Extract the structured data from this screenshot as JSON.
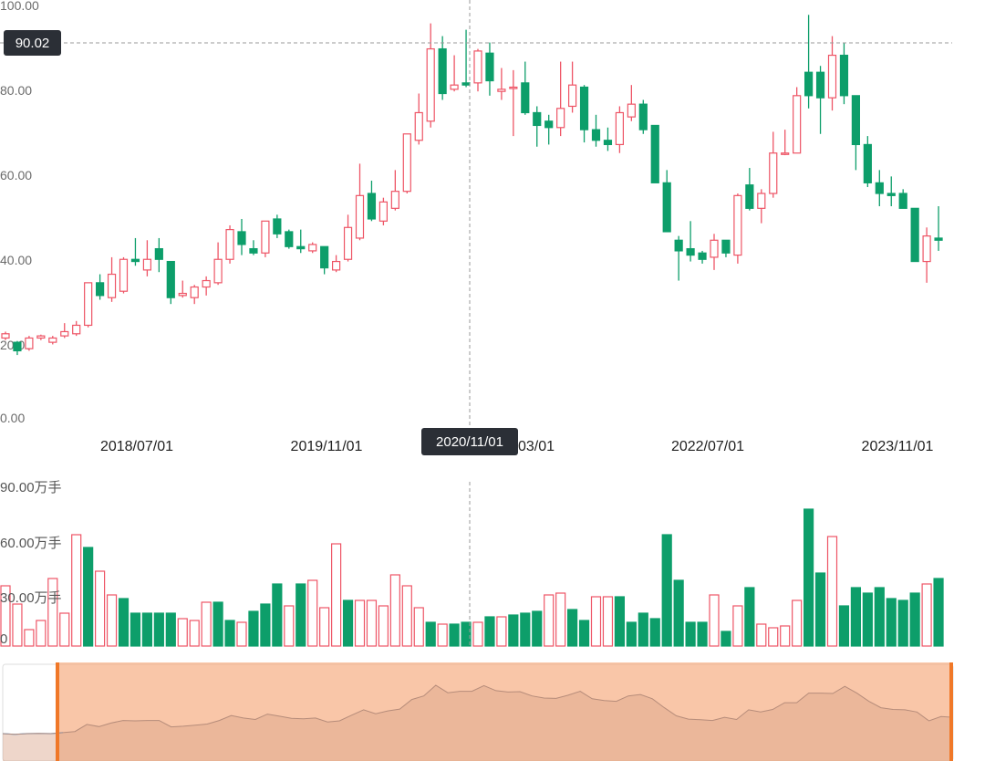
{
  "colors": {
    "up": "#ee5566",
    "down": "#0d9e6a",
    "crosshair": "#999999",
    "tag_bg": "#2b2f36",
    "brush": "#f6a77a",
    "brush_handle": "#f07828",
    "overview_line": "#5aa7ea"
  },
  "crosshair": {
    "price_label": "90.02",
    "date_label": "2020/11/01",
    "price": 90.02,
    "candle_index": 39
  },
  "chart_data": [
    {
      "type": "candlestick",
      "title": "",
      "y_ticks": [
        "100.00",
        "80.00",
        "60.00",
        "40.00",
        "20.00",
        "0.00"
      ],
      "ylim": [
        0,
        100
      ],
      "x_ticks": [
        {
          "label": "2018/07/01",
          "index": 8
        },
        {
          "label": "2019/11/01",
          "index": 24
        },
        {
          "label": "2021/03/01",
          "label_visible_part": "03/01",
          "index": 40
        },
        {
          "label": "2022/07/01",
          "index": 56
        },
        {
          "label": "2023/11/01",
          "index": 72
        }
      ],
      "grid": false,
      "candles": [
        [
          17.5,
          18.5,
          19.0,
          17.0
        ],
        [
          16.5,
          14.5,
          16.8,
          13.5
        ],
        [
          15.0,
          17.5,
          18.0,
          14.5
        ],
        [
          17.5,
          18.0,
          18.3,
          17.0
        ],
        [
          16.5,
          17.5,
          18.0,
          16.0
        ],
        [
          18.0,
          19.0,
          21.0,
          17.5
        ],
        [
          18.5,
          20.5,
          21.5,
          18.0
        ],
        [
          20.5,
          30.5,
          30.5,
          20.0
        ],
        [
          30.5,
          27.5,
          32.5,
          26.5
        ],
        [
          27.0,
          32.5,
          36.5,
          26.0
        ],
        [
          28.5,
          36.0,
          36.5,
          28.0
        ],
        [
          36.0,
          35.5,
          41.0,
          34.5
        ],
        [
          33.5,
          36.0,
          40.5,
          32.0
        ],
        [
          38.5,
          36.0,
          41.0,
          33.0
        ],
        [
          35.5,
          27.0,
          35.5,
          25.5
        ],
        [
          27.5,
          28.0,
          31.0,
          27.0
        ],
        [
          27.0,
          29.5,
          30.0,
          25.5
        ],
        [
          29.5,
          31.0,
          32.0,
          27.5
        ],
        [
          30.5,
          36.0,
          40.0,
          30.0
        ],
        [
          36.0,
          43.0,
          44.0,
          35.0
        ],
        [
          42.5,
          39.5,
          45.5,
          37.0
        ],
        [
          38.5,
          37.5,
          40.5,
          37.0
        ],
        [
          37.5,
          45.0,
          45.0,
          36.5
        ],
        [
          45.5,
          42.0,
          46.5,
          41.0
        ],
        [
          42.5,
          39.0,
          43.0,
          38.5
        ],
        [
          39.0,
          38.5,
          43.0,
          37.5
        ],
        [
          38.0,
          39.5,
          40.0,
          37.5
        ],
        [
          39.0,
          34.0,
          39.0,
          32.5
        ],
        [
          33.5,
          35.5,
          37.0,
          33.0
        ],
        [
          36.0,
          43.5,
          46.5,
          35.5
        ],
        [
          41.0,
          51.0,
          58.5,
          40.5
        ],
        [
          51.5,
          45.5,
          54.5,
          45.0
        ],
        [
          45.0,
          49.5,
          50.5,
          44.0
        ],
        [
          48.0,
          52.0,
          57.0,
          47.5
        ],
        [
          52.0,
          65.5,
          65.5,
          51.5
        ],
        [
          64.0,
          70.5,
          75.0,
          63.0
        ],
        [
          68.5,
          85.5,
          91.5,
          67.0
        ],
        [
          85.5,
          75.0,
          88.5,
          73.5
        ],
        [
          76.0,
          77.0,
          84.0,
          75.5
        ],
        [
          77.5,
          77.0,
          90.0,
          76.5
        ],
        [
          77.5,
          85.0,
          85.5,
          75.5
        ],
        [
          84.5,
          78.0,
          87.0,
          74.5
        ],
        [
          75.5,
          76.0,
          81.0,
          73.5
        ],
        [
          76.5,
          76.5,
          80.5,
          65.0
        ],
        [
          77.5,
          70.5,
          82.5,
          70.0
        ],
        [
          70.5,
          67.5,
          72.0,
          62.5
        ],
        [
          68.5,
          67.0,
          70.0,
          63.0
        ],
        [
          67.0,
          71.5,
          82.5,
          65.0
        ],
        [
          72.0,
          77.0,
          82.5,
          70.5
        ],
        [
          76.5,
          66.5,
          77.0,
          63.5
        ],
        [
          66.5,
          64.0,
          70.0,
          62.5
        ],
        [
          64.0,
          63.0,
          67.0,
          61.5
        ],
        [
          63.0,
          70.5,
          72.0,
          61.0
        ],
        [
          69.5,
          72.5,
          77.0,
          68.5
        ],
        [
          72.5,
          66.5,
          73.5,
          65.5
        ],
        [
          67.5,
          54.0,
          67.5,
          54.0
        ],
        [
          54.0,
          42.5,
          57.0,
          42.5
        ],
        [
          40.5,
          38.0,
          41.5,
          31.0
        ],
        [
          38.5,
          37.0,
          45.0,
          35.5
        ],
        [
          37.5,
          36.0,
          38.0,
          35.0
        ],
        [
          36.5,
          40.5,
          42.0,
          33.5
        ],
        [
          40.5,
          37.5,
          40.5,
          36.5
        ],
        [
          37.0,
          51.0,
          51.5,
          35.0
        ],
        [
          53.5,
          48.0,
          57.5,
          47.5
        ],
        [
          48.0,
          51.5,
          52.5,
          44.5
        ],
        [
          51.5,
          61.0,
          66.0,
          50.5
        ],
        [
          61.0,
          61.0,
          66.5,
          60.5
        ],
        [
          61.0,
          74.5,
          76.5,
          61.0
        ],
        [
          80.0,
          74.5,
          93.5,
          71.5
        ],
        [
          80.0,
          74.0,
          81.5,
          65.5
        ],
        [
          74.0,
          84.0,
          88.5,
          71.0
        ],
        [
          84.0,
          74.5,
          87.0,
          72.5
        ],
        [
          74.5,
          63.0,
          74.5,
          57.0
        ],
        [
          63.0,
          54.0,
          65.0,
          53.0
        ],
        [
          54.0,
          51.5,
          57.0,
          48.5
        ],
        [
          51.5,
          51.0,
          55.5,
          48.5
        ],
        [
          51.5,
          48.0,
          52.5,
          48.0
        ],
        [
          48.0,
          35.5,
          48.0,
          35.5
        ],
        [
          35.5,
          41.5,
          43.5,
          30.5
        ],
        [
          41.0,
          40.5,
          48.5,
          38.0
        ]
      ]
    },
    {
      "type": "bar",
      "title": "",
      "y_ticks": [
        "90.00万手",
        "60.00万手",
        "30.00万手",
        "0"
      ],
      "ylim": [
        0,
        90
      ],
      "unit": "万手",
      "values": [
        33,
        23,
        9,
        14,
        37,
        18,
        61,
        54,
        41,
        28,
        26,
        18,
        18,
        18,
        18,
        15,
        14,
        24,
        24,
        14,
        13,
        19,
        23,
        34,
        22,
        34,
        36,
        21,
        56,
        25,
        25,
        25,
        22,
        39,
        33,
        21,
        13,
        12,
        12,
        13,
        13,
        16,
        16,
        17,
        18,
        19,
        28,
        29,
        20,
        14,
        27,
        27,
        27,
        13,
        18,
        15,
        61,
        36,
        13,
        13,
        28,
        8,
        22,
        32,
        12,
        10,
        11,
        25,
        75,
        40,
        60,
        22,
        32,
        29,
        32,
        26,
        25,
        29,
        34,
        37
      ],
      "up": [
        true,
        true,
        true,
        true,
        true,
        true,
        true,
        false,
        true,
        true,
        false,
        false,
        false,
        false,
        false,
        true,
        true,
        true,
        false,
        false,
        true,
        false,
        false,
        false,
        true,
        false,
        true,
        true,
        true,
        false,
        true,
        true,
        true,
        true,
        true,
        true,
        false,
        true,
        false,
        false,
        true,
        false,
        true,
        false,
        false,
        false,
        true,
        true,
        false,
        false,
        true,
        true,
        false,
        false,
        false,
        false,
        false,
        false,
        false,
        false,
        true,
        false,
        true,
        false,
        true,
        true,
        true,
        true,
        false,
        false,
        true,
        false,
        false,
        false,
        false,
        false,
        false,
        false,
        true,
        false
      ]
    },
    {
      "type": "area",
      "title": "",
      "role": "overview-brush",
      "values": [
        17.5,
        16.5,
        17.5,
        17.8,
        17.5,
        19.0,
        20.5,
        30.5,
        27.5,
        32.5,
        36.0,
        35.5,
        36.0,
        36.0,
        27.0,
        28.0,
        29.5,
        31.0,
        36.0,
        43.0,
        39.5,
        37.5,
        45.0,
        42.0,
        39.0,
        38.5,
        39.5,
        34.0,
        35.5,
        43.5,
        51.0,
        45.5,
        49.5,
        52.0,
        65.5,
        70.5,
        85.5,
        75.0,
        77.0,
        77.0,
        85.0,
        78.0,
        76.0,
        76.5,
        70.5,
        67.5,
        67.0,
        71.5,
        77.0,
        66.5,
        64.0,
        63.0,
        70.5,
        72.5,
        66.5,
        54.0,
        42.5,
        38.0,
        37.0,
        36.0,
        40.5,
        37.5,
        51.0,
        48.0,
        51.5,
        61.0,
        61.0,
        74.5,
        74.5,
        74.0,
        84.0,
        74.5,
        63.0,
        54.0,
        51.5,
        51.0,
        48.0,
        35.5,
        41.5,
        40.5
      ],
      "brush_range_fraction": [
        0.058,
        1.0
      ]
    }
  ]
}
